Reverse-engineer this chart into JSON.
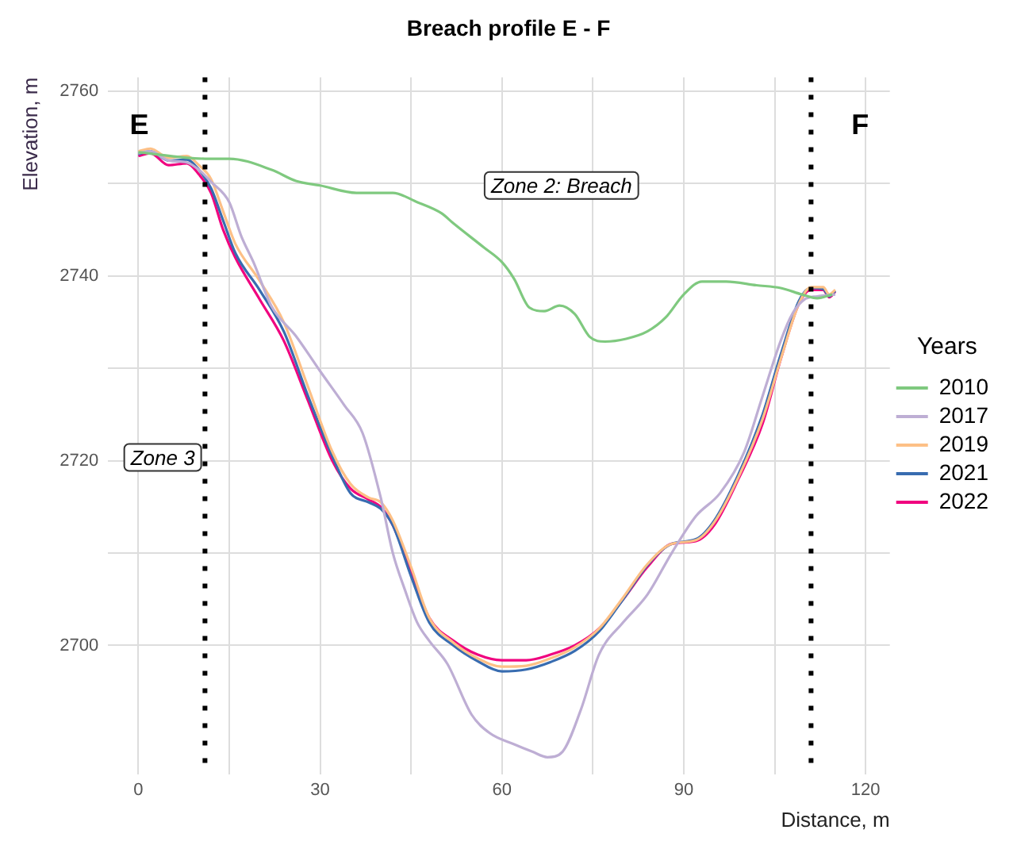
{
  "chart_data": {
    "type": "line",
    "title": "Breach profile E - F",
    "xlabel": "Distance, m",
    "ylabel": "Elevation, m",
    "legend_title": "Years",
    "legend": "right",
    "grid": true,
    "marker": "none",
    "line_style": "solid",
    "xlim": [
      -5,
      124
    ],
    "ylim": [
      2686,
      2761.5
    ],
    "xticks": [
      0,
      {
        "value": 15,
        "label": null
      },
      30,
      {
        "value": 45,
        "label": null
      },
      60,
      {
        "value": 75,
        "label": null
      },
      90,
      {
        "value": 105,
        "label": null
      },
      120
    ],
    "yticks": [
      2700,
      {
        "value": 2710,
        "label": null
      },
      2720,
      {
        "value": 2730,
        "label": null
      },
      2740,
      {
        "value": 2750,
        "label": null
      },
      2760
    ],
    "ref_lines": [
      {
        "axis": "x",
        "value": 11,
        "label": null,
        "color": "#000000",
        "line_style": "dotted"
      },
      {
        "axis": "x",
        "value": 111,
        "label": null,
        "color": "#000000",
        "line_style": "dotted"
      }
    ],
    "annotations": [
      "E",
      "F",
      "Zone 2: Breach",
      "Zone 3"
    ],
    "series": [
      {
        "name": "2010",
        "color": "#7fc97f",
        "x": [
          0,
          11,
          15,
          22,
          26,
          30,
          36,
          42,
          46,
          50,
          52,
          57,
          60,
          62,
          64.5,
          67,
          69.5,
          72,
          74.5,
          77,
          80.5,
          84,
          87,
          90,
          93,
          97,
          102,
          106,
          109.5,
          112,
          114.5
        ],
        "values": [
          2753.4,
          2752.7,
          2752.7,
          2751.5,
          2750.3,
          2749.8,
          2749,
          2749,
          2748,
          2746.8,
          2745.7,
          2743.1,
          2741.5,
          2739.7,
          2736.6,
          2736.2,
          2736.8,
          2735.9,
          2733.4,
          2732.9,
          2733.2,
          2734,
          2735.5,
          2738,
          2739.4,
          2739.4,
          2739,
          2738.7,
          2738,
          2737.6,
          2738
        ]
      },
      {
        "name": "2017",
        "color": "#beaed4",
        "x": [
          0,
          2,
          5,
          8,
          10,
          12,
          15,
          17,
          19,
          22,
          26,
          30,
          34,
          37,
          40,
          42,
          44,
          46,
          48,
          51,
          55,
          58,
          62,
          65,
          67.5,
          70,
          73,
          76,
          80,
          84,
          88,
          92,
          96,
          100,
          103,
          106,
          108,
          110,
          112,
          115
        ],
        "values": [
          2753.3,
          2753.5,
          2752.5,
          2752.3,
          2751.5,
          2750.2,
          2748,
          2744.3,
          2741.5,
          2736.7,
          2733.5,
          2729.7,
          2726,
          2723,
          2716,
          2710,
          2706,
          2702.5,
          2700.5,
          2698,
          2692.5,
          2690.5,
          2689.3,
          2688.5,
          2687.9,
          2688.5,
          2693,
          2699,
          2702.5,
          2705.5,
          2710,
          2714,
          2716.5,
          2721,
          2727,
          2733,
          2736,
          2737.5,
          2737.8,
          2738
        ]
      },
      {
        "name": "2019",
        "color": "#fdc086",
        "x": [
          0,
          2,
          5,
          8,
          10,
          12,
          14,
          16,
          20,
          24,
          28,
          32,
          35,
          38,
          40,
          42,
          45,
          48,
          52,
          56,
          60,
          64,
          68,
          72,
          76,
          80,
          84,
          88,
          92,
          95,
          99,
          103,
          106,
          109,
          111,
          113,
          114,
          115
        ],
        "values": [
          2753.5,
          2753.8,
          2752.8,
          2753,
          2752,
          2750.5,
          2747,
          2743.5,
          2739.5,
          2735,
          2728,
          2721,
          2717.5,
          2716,
          2715.5,
          2713.5,
          2708.5,
          2703,
          2700.3,
          2698.6,
          2697.7,
          2697.8,
          2698.6,
          2699.8,
          2701.8,
          2705.2,
          2708.8,
          2711,
          2711.4,
          2713.3,
          2718.2,
          2724.5,
          2731,
          2737,
          2738.8,
          2738.8,
          2738,
          2738.5
        ]
      },
      {
        "name": "2021",
        "color": "#386cb0",
        "x": [
          0,
          2,
          5,
          8,
          10,
          12,
          14,
          16,
          20,
          24,
          28,
          32,
          35,
          38,
          40,
          42,
          45,
          48,
          52,
          56,
          60,
          64,
          68,
          72,
          76,
          80,
          84,
          88,
          92,
          95,
          99,
          103,
          106,
          109,
          111,
          113,
          114,
          115
        ],
        "values": [
          2753.2,
          2753.5,
          2752.5,
          2752.6,
          2751.5,
          2749.5,
          2746,
          2742.5,
          2738.5,
          2734,
          2727,
          2720.5,
          2716.5,
          2715.5,
          2714.8,
          2713,
          2707.5,
          2702.5,
          2700,
          2698.3,
          2697.2,
          2697.4,
          2698.2,
          2699.4,
          2701.5,
          2705,
          2708.7,
          2711,
          2711.5,
          2713.5,
          2718.5,
          2725,
          2731.5,
          2737.3,
          2738.7,
          2738.6,
          2737.8,
          2738.4
        ]
      },
      {
        "name": "2022",
        "color": "#f0027f",
        "x": [
          0,
          2,
          5,
          8,
          10,
          12,
          14,
          16,
          20,
          24,
          28,
          32,
          35,
          38,
          40,
          42,
          45,
          48,
          52,
          56,
          60,
          64,
          68,
          72,
          76,
          80,
          84,
          88,
          92,
          95,
          99,
          103,
          106,
          109,
          111,
          113,
          114,
          115
        ],
        "values": [
          2753,
          2753.3,
          2752,
          2752.2,
          2751,
          2749,
          2745,
          2742,
          2737.5,
          2733,
          2726.5,
          2720,
          2717,
          2715.8,
          2715,
          2713,
          2708,
          2703,
          2700.5,
          2699,
          2698.4,
          2698.4,
          2699,
          2700,
          2701.8,
          2705,
          2708.5,
          2711,
          2711.3,
          2713,
          2718,
          2724,
          2731,
          2737,
          2738.5,
          2738.5,
          2737.7,
          2738.3
        ]
      }
    ]
  }
}
